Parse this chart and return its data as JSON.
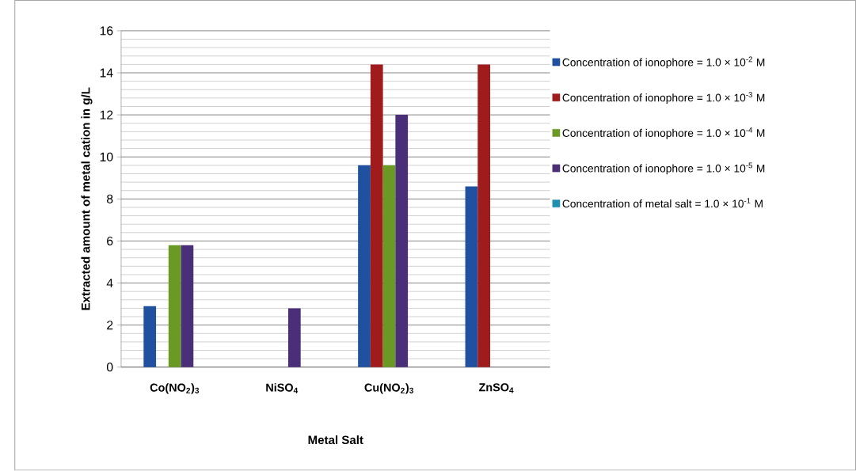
{
  "chart_data": {
    "type": "bar",
    "xlabel": "Metal Salt",
    "ylabel": "Extracted amount of metal cation in g/L",
    "categories": [
      "Co(NO$_{2}$)$_{3}$",
      "NiSO$_{4}$",
      "Cu(NO$_{2}$)$_{3}$",
      "ZnSO$_{4}$"
    ],
    "series": [
      {
        "name": "Concentration of ionophore = 1.0 × 10$^{-2}$ M",
        "color": "#2050a0",
        "values": [
          2.9,
          null,
          9.6,
          8.6
        ]
      },
      {
        "name": "Concentration of ionophore = 1.0 × 10$^{-3}$ M",
        "color": "#a01c1c",
        "values": [
          null,
          null,
          14.4,
          14.4
        ]
      },
      {
        "name": "Concentration of ionophore = 1.0 × 10$^{-4}$ M",
        "color": "#6a9a24",
        "values": [
          5.8,
          null,
          9.6,
          null
        ]
      },
      {
        "name": "Concentration of ionophore = 1.0 × 10$^{-5}$ M",
        "color": "#4a2e78",
        "values": [
          5.8,
          2.8,
          12.0,
          null
        ]
      },
      {
        "name": "Concentration of metal salt = 1.0 × 10$^{-1}$ M",
        "color": "#2090b0",
        "values": [
          null,
          null,
          null,
          null
        ]
      }
    ],
    "ylim": [
      0,
      16
    ],
    "yticks": [
      0,
      2,
      4,
      6,
      8,
      10,
      12,
      14,
      16
    ],
    "grid": "y",
    "legend": "right"
  }
}
